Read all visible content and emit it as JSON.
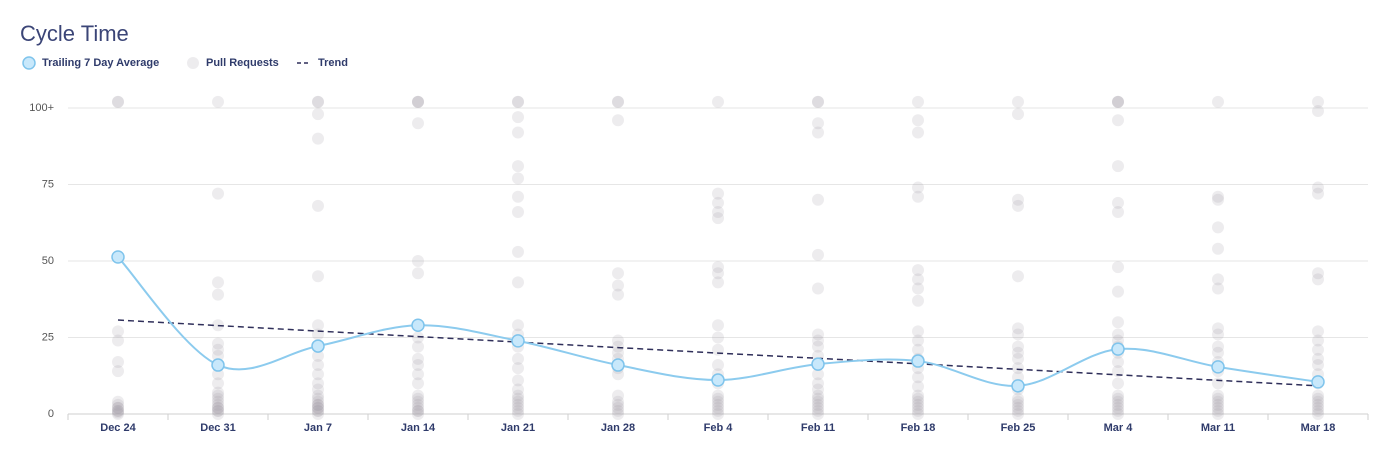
{
  "chart_data": {
    "type": "combo",
    "title": "Cycle Time",
    "categories": [
      "Dec 24",
      "Dec 31",
      "Jan 7",
      "Jan 14",
      "Jan 21",
      "Jan 28",
      "Feb 4",
      "Feb 11",
      "Feb 18",
      "Feb 25",
      "Mar 4",
      "Mar 11",
      "Mar 18"
    ],
    "ylim": [
      0,
      104
    ],
    "yticks": [
      0,
      25,
      50,
      75,
      {
        "value": 100,
        "label": "100+"
      }
    ],
    "grid": true,
    "series": [
      {
        "name": "Trailing 7 Day Average",
        "type": "line",
        "color": "#8ccbee",
        "values": [
          51.3,
          16,
          22.2,
          29,
          23.9,
          16,
          11.1,
          16.3,
          17.3,
          9.2,
          21.2,
          15.4,
          10.5
        ]
      },
      {
        "name": "Pull Requests",
        "type": "scatter",
        "color": "#9a98a3",
        "values": [
          [
            102,
            102,
            27,
            24,
            17,
            14,
            4,
            3,
            2,
            1,
            0.5,
            0,
            2,
            1
          ],
          [
            102,
            72,
            43,
            39,
            29,
            23,
            21,
            19,
            16,
            13,
            10,
            7,
            6,
            5,
            4,
            3,
            2,
            1,
            0,
            1,
            2
          ],
          [
            102,
            102,
            98,
            90,
            68,
            45,
            29,
            26,
            22,
            19,
            16,
            13,
            10,
            8,
            6,
            5,
            4,
            3,
            2,
            1,
            0,
            1,
            2,
            3
          ],
          [
            102,
            102,
            102,
            95,
            50,
            46,
            29,
            25,
            22,
            18,
            16,
            13,
            10,
            6,
            5,
            4,
            3,
            2,
            1,
            0,
            1
          ],
          [
            102,
            102,
            97,
            92,
            81,
            77,
            71,
            66,
            53,
            43,
            29,
            26,
            22,
            18,
            15,
            11,
            8,
            6,
            5,
            4,
            3,
            2,
            1,
            0
          ],
          [
            102,
            102,
            96,
            46,
            42,
            39,
            24,
            22,
            20,
            18,
            15,
            13,
            6,
            4,
            3,
            2,
            1,
            0
          ],
          [
            102,
            72,
            69,
            66,
            64,
            48,
            46,
            43,
            29,
            25,
            21,
            16,
            13,
            10,
            6,
            5,
            4,
            3,
            2,
            1,
            0
          ],
          [
            102,
            102,
            95,
            92,
            70,
            52,
            41,
            26,
            24,
            22,
            19,
            16,
            13,
            10,
            8,
            6,
            5,
            4,
            3,
            2,
            1,
            0
          ],
          [
            102,
            96,
            92,
            74,
            71,
            47,
            44,
            41,
            37,
            27,
            24,
            21,
            18,
            15,
            12,
            9,
            6,
            5,
            4,
            3,
            2,
            1,
            0
          ],
          [
            102,
            98,
            70,
            68,
            45,
            28,
            26,
            22,
            20,
            18,
            15,
            12,
            8,
            5,
            4,
            3,
            2,
            1,
            0
          ],
          [
            102,
            102,
            102,
            96,
            81,
            69,
            66,
            48,
            40,
            30,
            26,
            24,
            22,
            20,
            17,
            14,
            10,
            6,
            5,
            4,
            3,
            2,
            1,
            0
          ],
          [
            102,
            71,
            70,
            61,
            54,
            44,
            41,
            28,
            26,
            22,
            20,
            17,
            14,
            10,
            6,
            5,
            4,
            3,
            2,
            1,
            0
          ],
          [
            102,
            99,
            74,
            72,
            46,
            44,
            27,
            24,
            21,
            18,
            16,
            13,
            10,
            6,
            5,
            4,
            3,
            2,
            1,
            0
          ]
        ]
      },
      {
        "name": "Trend",
        "type": "line",
        "dashed": true,
        "color": "#2f2f5a",
        "values": [
          30.7,
          28.9,
          27.1,
          25.3,
          23.5,
          21.7,
          19.9,
          18.2,
          16.4,
          14.6,
          12.8,
          11.0,
          9.2
        ]
      }
    ]
  }
}
